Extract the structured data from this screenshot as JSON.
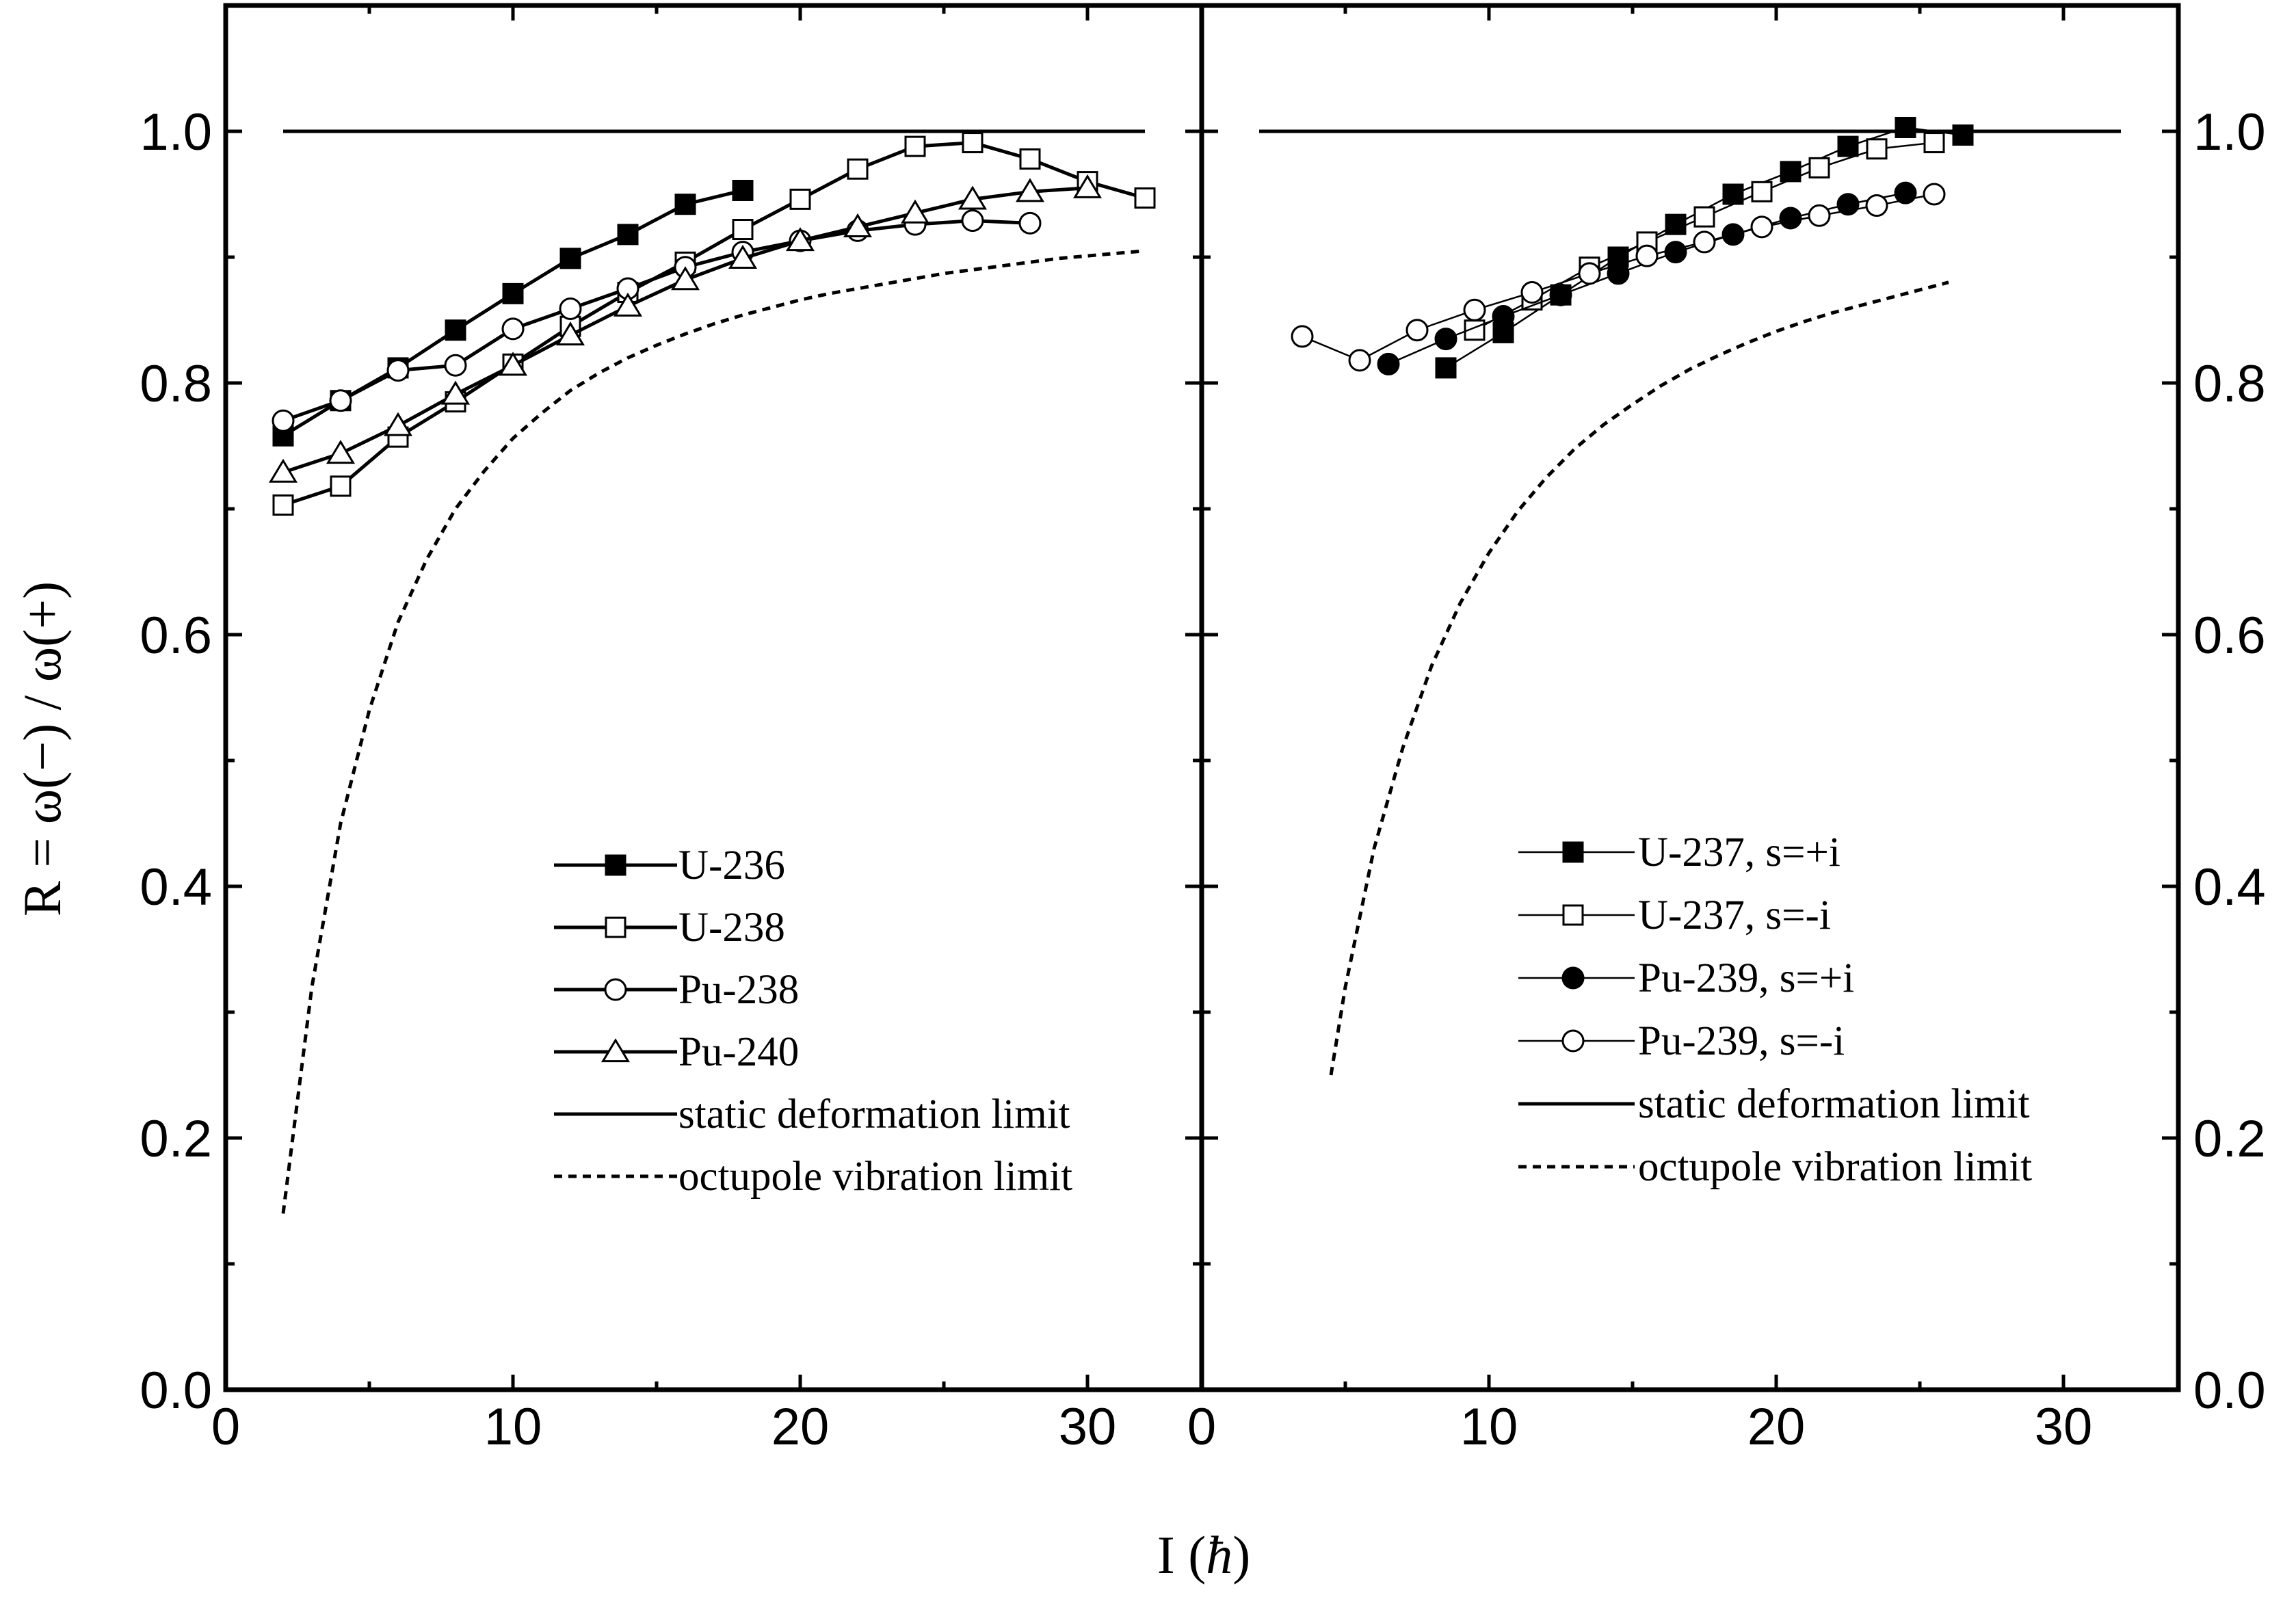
{
  "chart_data": {
    "type": "line",
    "x_label_prefix": "I (",
    "x_label_symbol": "ħ",
    "x_label_suffix": ")",
    "y_label": "R = ω(−) / ω(+)",
    "ylim": [
      0,
      1.1
    ],
    "y_major_ticks": [
      0.0,
      0.2,
      0.4,
      0.6,
      0.8,
      1.0
    ],
    "y_tick_labels": [
      "0.0",
      "0.2",
      "0.4",
      "0.6",
      "0.8",
      "1.0"
    ],
    "panels": [
      {
        "id": "left",
        "xlim": [
          0,
          34
        ],
        "x_major_ticks": [
          0,
          10,
          20,
          30
        ],
        "x_tick_labels": [
          "0",
          "10",
          "20",
          "30"
        ],
        "legend_position": "lower-right",
        "series": [
          {
            "name": "U-236",
            "marker": "square",
            "filled": true,
            "x": [
              2,
              4,
              6,
              8,
              10,
              12,
              14,
              16,
              18
            ],
            "y": [
              0.758,
              0.786,
              0.812,
              0.842,
              0.871,
              0.899,
              0.918,
              0.942,
              0.953
            ]
          },
          {
            "name": "U-238",
            "marker": "square",
            "filled": false,
            "x": [
              2,
              4,
              6,
              8,
              10,
              12,
              14,
              16,
              18,
              20,
              22,
              24,
              26,
              28,
              30,
              32
            ],
            "y": [
              0.703,
              0.718,
              0.757,
              0.785,
              0.815,
              0.845,
              0.872,
              0.896,
              0.922,
              0.946,
              0.97,
              0.988,
              0.991,
              0.978,
              0.96,
              0.947
            ]
          },
          {
            "name": "Pu-238",
            "marker": "circle",
            "filled": false,
            "x": [
              2,
              4,
              6,
              8,
              10,
              12,
              14,
              16,
              18,
              20,
              22,
              24,
              26,
              28
            ],
            "y": [
              0.77,
              0.786,
              0.81,
              0.814,
              0.843,
              0.859,
              0.875,
              0.892,
              0.904,
              0.913,
              0.921,
              0.926,
              0.929,
              0.927
            ]
          },
          {
            "name": "Pu-240",
            "marker": "triangle",
            "filled": false,
            "x": [
              2,
              4,
              6,
              8,
              10,
              12,
              14,
              16,
              18,
              20,
              22,
              24,
              26,
              28,
              30
            ],
            "y": [
              0.729,
              0.744,
              0.766,
              0.791,
              0.814,
              0.838,
              0.861,
              0.882,
              0.899,
              0.913,
              0.924,
              0.935,
              0.946,
              0.952,
              0.955
            ]
          },
          {
            "name": "static deformation limit",
            "line": "solid",
            "x": [
              2,
              32
            ],
            "y": [
              1.0,
              1.0
            ]
          },
          {
            "name": "octupole vibration limit",
            "line": "dashed",
            "x": [
              2,
              3,
              4,
              5,
              6,
              7,
              8,
              9,
              10,
              11,
              12,
              13,
              14,
              15,
              16,
              17,
              18,
              19,
              20,
              21,
              22,
              23,
              24,
              25,
              26,
              27,
              28,
              29,
              30,
              31,
              32
            ],
            "y": [
              0.14,
              0.32,
              0.45,
              0.54,
              0.61,
              0.66,
              0.7,
              0.73,
              0.756,
              0.776,
              0.794,
              0.808,
              0.82,
              0.83,
              0.839,
              0.847,
              0.854,
              0.86,
              0.866,
              0.871,
              0.875,
              0.879,
              0.883,
              0.887,
              0.89,
              0.893,
              0.896,
              0.899,
              0.901,
              0.903,
              0.905
            ]
          }
        ]
      },
      {
        "id": "right",
        "xlim": [
          0,
          34
        ],
        "x_major_ticks": [
          0,
          10,
          20,
          30
        ],
        "x_tick_labels": [
          "0",
          "10",
          "20",
          "30"
        ],
        "legend_position": "lower-right",
        "series": [
          {
            "name": "U-237, s=+i",
            "marker": "square",
            "filled": true,
            "x": [
              8.5,
              10.5,
              12.5,
              14.5,
              16.5,
              18.5,
              20.5,
              22.5,
              24.5,
              26.5
            ],
            "y": [
              0.812,
              0.84,
              0.87,
              0.9,
              0.926,
              0.95,
              0.968,
              0.988,
              1.003,
              0.997
            ]
          },
          {
            "name": "U-237, s=-i",
            "marker": "square",
            "filled": false,
            "x": [
              9.5,
              11.5,
              13.5,
              15.5,
              17.5,
              19.5,
              21.5,
              23.5,
              25.5
            ],
            "y": [
              0.842,
              0.866,
              0.892,
              0.912,
              0.932,
              0.952,
              0.971,
              0.986,
              0.991
            ]
          },
          {
            "name": "Pu-239, s=+i",
            "marker": "circle",
            "filled": true,
            "x": [
              6.5,
              8.5,
              10.5,
              12.5,
              14.5,
              16.5,
              18.5,
              20.5,
              22.5,
              24.5
            ],
            "y": [
              0.815,
              0.835,
              0.853,
              0.87,
              0.887,
              0.904,
              0.918,
              0.931,
              0.942,
              0.951
            ]
          },
          {
            "name": "Pu-239, s=-i",
            "marker": "circle",
            "filled": false,
            "x": [
              3.5,
              5.5,
              7.5,
              9.5,
              11.5,
              13.5,
              15.5,
              17.5,
              19.5,
              21.5,
              23.5,
              25.5
            ],
            "y": [
              0.837,
              0.818,
              0.842,
              0.858,
              0.872,
              0.887,
              0.901,
              0.912,
              0.924,
              0.933,
              0.941,
              0.95
            ]
          },
          {
            "name": "static deformation limit",
            "line": "solid",
            "x": [
              2,
              32
            ],
            "y": [
              1.0,
              1.0
            ]
          },
          {
            "name": "octupole  vibration limit",
            "line": "dashed",
            "x": [
              4.5,
              5,
              6,
              7,
              8,
              9,
              10,
              11,
              12,
              13,
              14,
              15,
              16,
              17,
              18,
              19,
              20,
              21,
              22,
              23,
              24,
              25,
              26
            ],
            "y": [
              0.25,
              0.32,
              0.43,
              0.51,
              0.575,
              0.625,
              0.665,
              0.698,
              0.725,
              0.748,
              0.767,
              0.783,
              0.798,
              0.811,
              0.822,
              0.832,
              0.841,
              0.849,
              0.856,
              0.862,
              0.868,
              0.874,
              0.88
            ]
          }
        ]
      }
    ]
  }
}
